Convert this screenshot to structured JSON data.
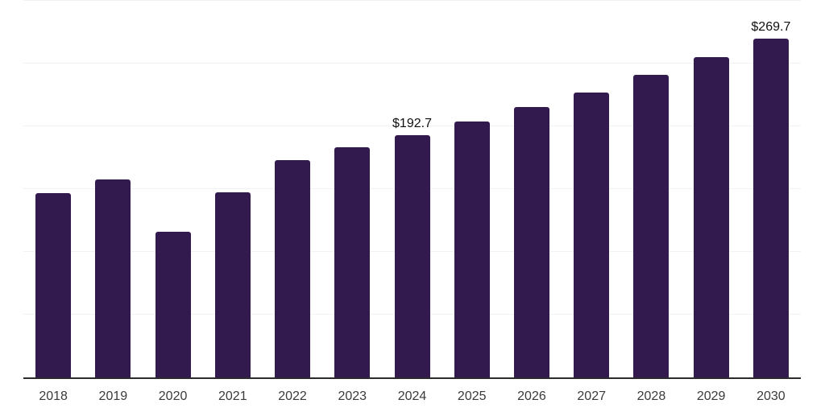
{
  "chart": {
    "background": "#ffffff",
    "bar_color": "#331a4e",
    "axis_line_color": "#2b2b2b",
    "gridline_color": "#f2f2f2",
    "tick_label_color": "#3a3a3a",
    "annotation_color": "#111111"
  },
  "chart_data": {
    "type": "bar",
    "categories": [
      "2018",
      "2019",
      "2020",
      "2021",
      "2022",
      "2023",
      "2024",
      "2025",
      "2026",
      "2027",
      "2028",
      "2029",
      "2030"
    ],
    "values": [
      147.1,
      157.4,
      116.3,
      147.7,
      173.4,
      183.1,
      192.7,
      203.6,
      215.2,
      226.7,
      240.9,
      255.0,
      269.7
    ],
    "title": "",
    "xlabel": "",
    "ylabel": "",
    "ylim": [
      0,
      300
    ],
    "grid_step": 50,
    "grid": "horizontal-only",
    "legend": "none",
    "y_axis_tick_labels_visible": false,
    "annotations": [
      {
        "category": "2024",
        "text": "$192.7"
      },
      {
        "category": "2030",
        "text": "$269.7"
      }
    ]
  }
}
